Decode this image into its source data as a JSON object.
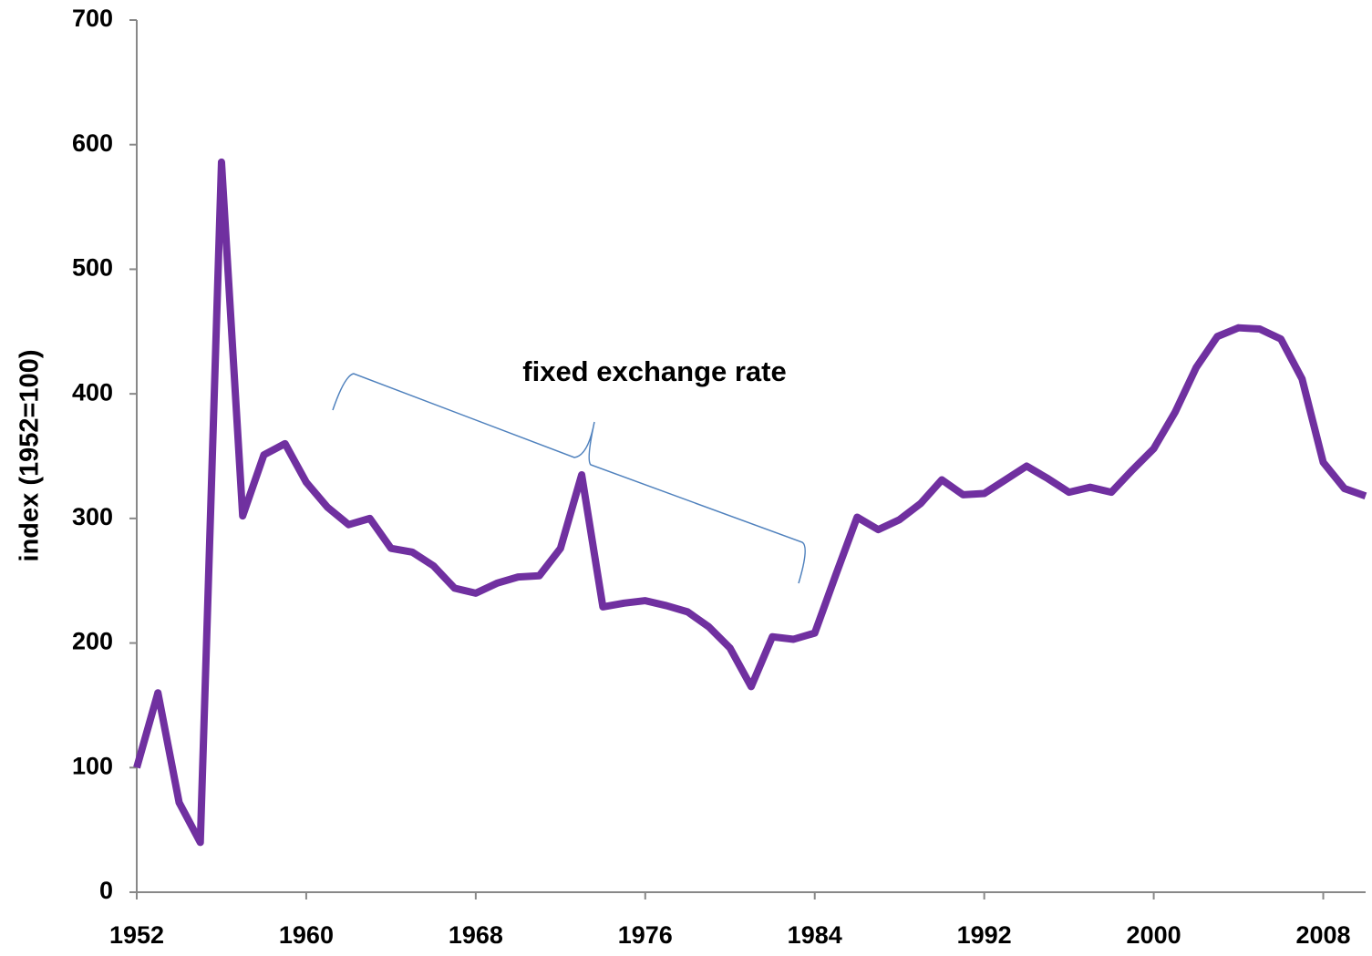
{
  "chart_data": {
    "type": "line",
    "y_label": "index (1952=100)",
    "annotation": "fixed exchange rate",
    "x": [
      1952,
      1953,
      1954,
      1955,
      1956,
      1957,
      1958,
      1959,
      1960,
      1961,
      1962,
      1963,
      1964,
      1965,
      1966,
      1967,
      1968,
      1969,
      1970,
      1971,
      1972,
      1973,
      1974,
      1975,
      1976,
      1977,
      1978,
      1979,
      1980,
      1981,
      1982,
      1983,
      1984,
      1985,
      1986,
      1987,
      1988,
      1989,
      1990,
      1991,
      1992,
      1993,
      1994,
      1995,
      1996,
      1997,
      1998,
      1999,
      2000,
      2001,
      2002,
      2003,
      2004,
      2005,
      2006,
      2007,
      2008,
      2009,
      2010
    ],
    "series": [
      {
        "name": "index",
        "color": "#7030a0",
        "values": [
          100,
          160,
          72,
          40,
          586,
          302,
          351,
          360,
          329,
          309,
          295,
          300,
          276,
          273,
          262,
          244,
          240,
          248,
          253,
          254,
          276,
          335,
          229,
          232,
          234,
          230,
          225,
          213,
          196,
          165,
          205,
          203,
          208,
          255,
          301,
          291,
          299,
          312,
          331,
          319,
          320,
          331,
          342,
          332,
          321,
          325,
          321,
          339,
          356,
          385,
          421,
          446,
          453,
          452,
          444,
          412,
          345,
          324,
          318
        ]
      }
    ],
    "xlim": [
      1952,
      2010
    ],
    "xticks": [
      1952,
      1960,
      1968,
      1976,
      1984,
      1992,
      2000,
      2008
    ],
    "ylim": [
      0,
      700
    ],
    "yticks": [
      0,
      100,
      200,
      300,
      400,
      500,
      600,
      700
    ]
  }
}
